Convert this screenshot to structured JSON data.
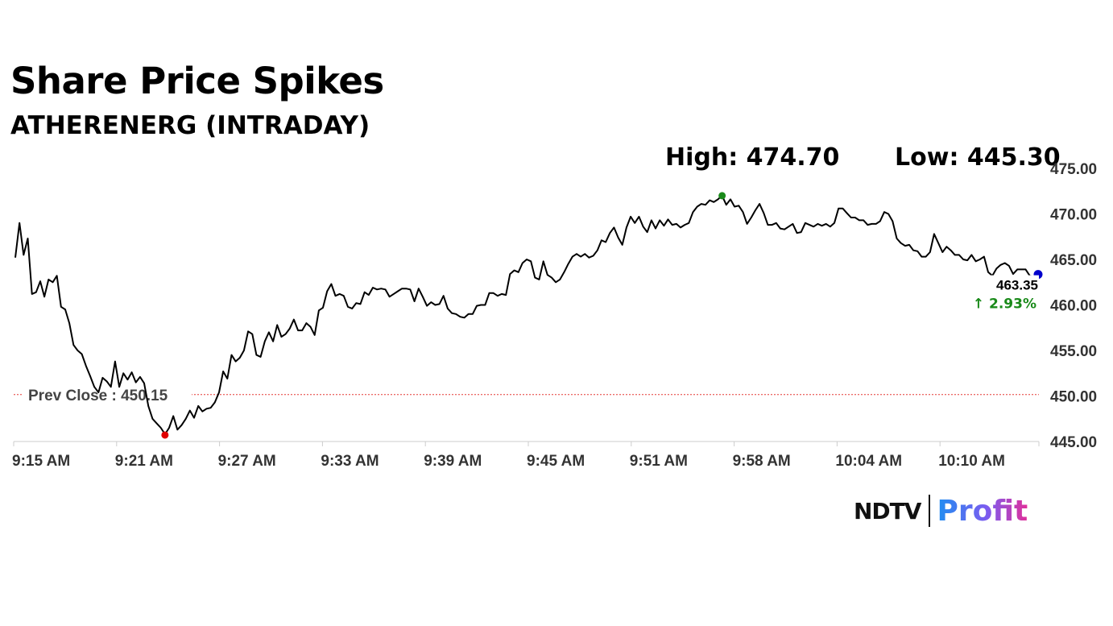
{
  "header": {
    "title": "Share Price Spikes",
    "subtitle": "ATHERENERG (INTRADAY)",
    "high_label": "High: 474.70",
    "low_label": "Low: 445.30"
  },
  "logo": {
    "ndtv": "NDTV",
    "profit": "Profit"
  },
  "chart_data": {
    "type": "line",
    "title": "Share Price Spikes",
    "subtitle": "ATHERENERG (INTRADAY)",
    "xlabel": "",
    "ylabel": "",
    "ylim": [
      445,
      475
    ],
    "y_ticks": [
      "475.00",
      "470.00",
      "465.00",
      "460.00",
      "455.00",
      "450.00",
      "445.00"
    ],
    "x_ticks": [
      "9:15 AM",
      "9:21 AM",
      "9:27 AM",
      "9:33 AM",
      "9:39 AM",
      "9:45 AM",
      "9:51 AM",
      "9:58 AM",
      "10:04 AM",
      "10:10 AM"
    ],
    "y_axis_position": "right",
    "grid": false,
    "legend": "none",
    "line_color": "#000000",
    "prev_close": {
      "value": 450.15,
      "label": "Prev Close : 450.15",
      "color": "#e53935"
    },
    "high_marker": {
      "value": 472.0,
      "color": "#1a8a1a"
    },
    "low_marker": {
      "value": 445.8,
      "color": "#e00000"
    },
    "last": {
      "value": "463.35",
      "change": "↑ 2.93%",
      "color": "#0000cc",
      "change_color": "#1a8a1a"
    },
    "series": [
      {
        "values": [
          465.2,
          469.0,
          465.5,
          467.3,
          461.2,
          461.4,
          462.6,
          460.9,
          462.8,
          462.5,
          463.2,
          459.8,
          459.5,
          458.0,
          455.6,
          455.0,
          454.6,
          453.3,
          452.2,
          451.0,
          450.4,
          452.0,
          451.6,
          451.0,
          453.8,
          451.0,
          452.5,
          451.8,
          452.6,
          451.5,
          452.1,
          451.4,
          448.9,
          447.5,
          447.0,
          446.5,
          445.8,
          446.5,
          447.8,
          446.3,
          446.8,
          447.5,
          448.4,
          447.6,
          448.9,
          448.3,
          448.6,
          448.7,
          449.3,
          450.4,
          452.7,
          451.9,
          454.5,
          453.8,
          454.2,
          455.0,
          457.1,
          456.8,
          454.5,
          454.3,
          456.0,
          457.0,
          456.0,
          457.8,
          456.5,
          456.8,
          457.4,
          458.4,
          457.2,
          457.2,
          458.0,
          457.6,
          456.7,
          459.4,
          459.7,
          461.5,
          462.3,
          461.0,
          461.2,
          461.0,
          459.8,
          459.6,
          460.2,
          460.1,
          461.4,
          461.1,
          461.9,
          461.7,
          461.8,
          461.7,
          460.9,
          461.2,
          461.5,
          461.8,
          461.8,
          461.7,
          460.4,
          461.8,
          460.9,
          459.9,
          460.3,
          460.0,
          460.1,
          461.0,
          459.6,
          459.1,
          459.0,
          458.7,
          458.6,
          459.0,
          459.0,
          459.9,
          460.0,
          460.0,
          461.3,
          461.3,
          461.0,
          461.2,
          461.1,
          463.4,
          463.8,
          463.6,
          464.6,
          465.0,
          464.8,
          463.0,
          462.8,
          464.8,
          463.3,
          463.0,
          462.5,
          462.8,
          463.6,
          464.5,
          465.3,
          465.6,
          465.3,
          465.6,
          465.2,
          465.4,
          466.0,
          467.1,
          466.9,
          467.9,
          468.5,
          467.4,
          466.6,
          468.5,
          469.7,
          469.0,
          469.7,
          468.6,
          468.0,
          469.3,
          468.4,
          469.3,
          468.7,
          469.4,
          468.8,
          468.9,
          468.5,
          468.8,
          469.0,
          470.2,
          470.8,
          471.1,
          471.0,
          471.5,
          471.3,
          471.6,
          472.0,
          471.0,
          471.6,
          470.8,
          470.9,
          470.2,
          468.9,
          469.6,
          470.4,
          471.1,
          470.1,
          468.8,
          468.8,
          469.0,
          468.4,
          468.3,
          468.6,
          468.9,
          467.9,
          468.0,
          469.0,
          468.8,
          468.6,
          468.9,
          468.7,
          468.9,
          468.6,
          469.0,
          470.6,
          470.6,
          470.1,
          469.6,
          469.6,
          469.3,
          469.3,
          468.8,
          468.9,
          468.9,
          469.2,
          470.2,
          470.0,
          469.2,
          467.3,
          466.8,
          466.5,
          466.6,
          466.0,
          465.9,
          465.3,
          465.3,
          465.8,
          467.8,
          466.8,
          465.8,
          466.4,
          466.0,
          465.5,
          465.5,
          465.0,
          464.9,
          465.5,
          464.8,
          465.0,
          465.3,
          463.6,
          463.2,
          464.0,
          464.4,
          464.6,
          464.3,
          463.4,
          463.9,
          463.9,
          463.9,
          463.2,
          463.1,
          463.35
        ]
      }
    ]
  }
}
